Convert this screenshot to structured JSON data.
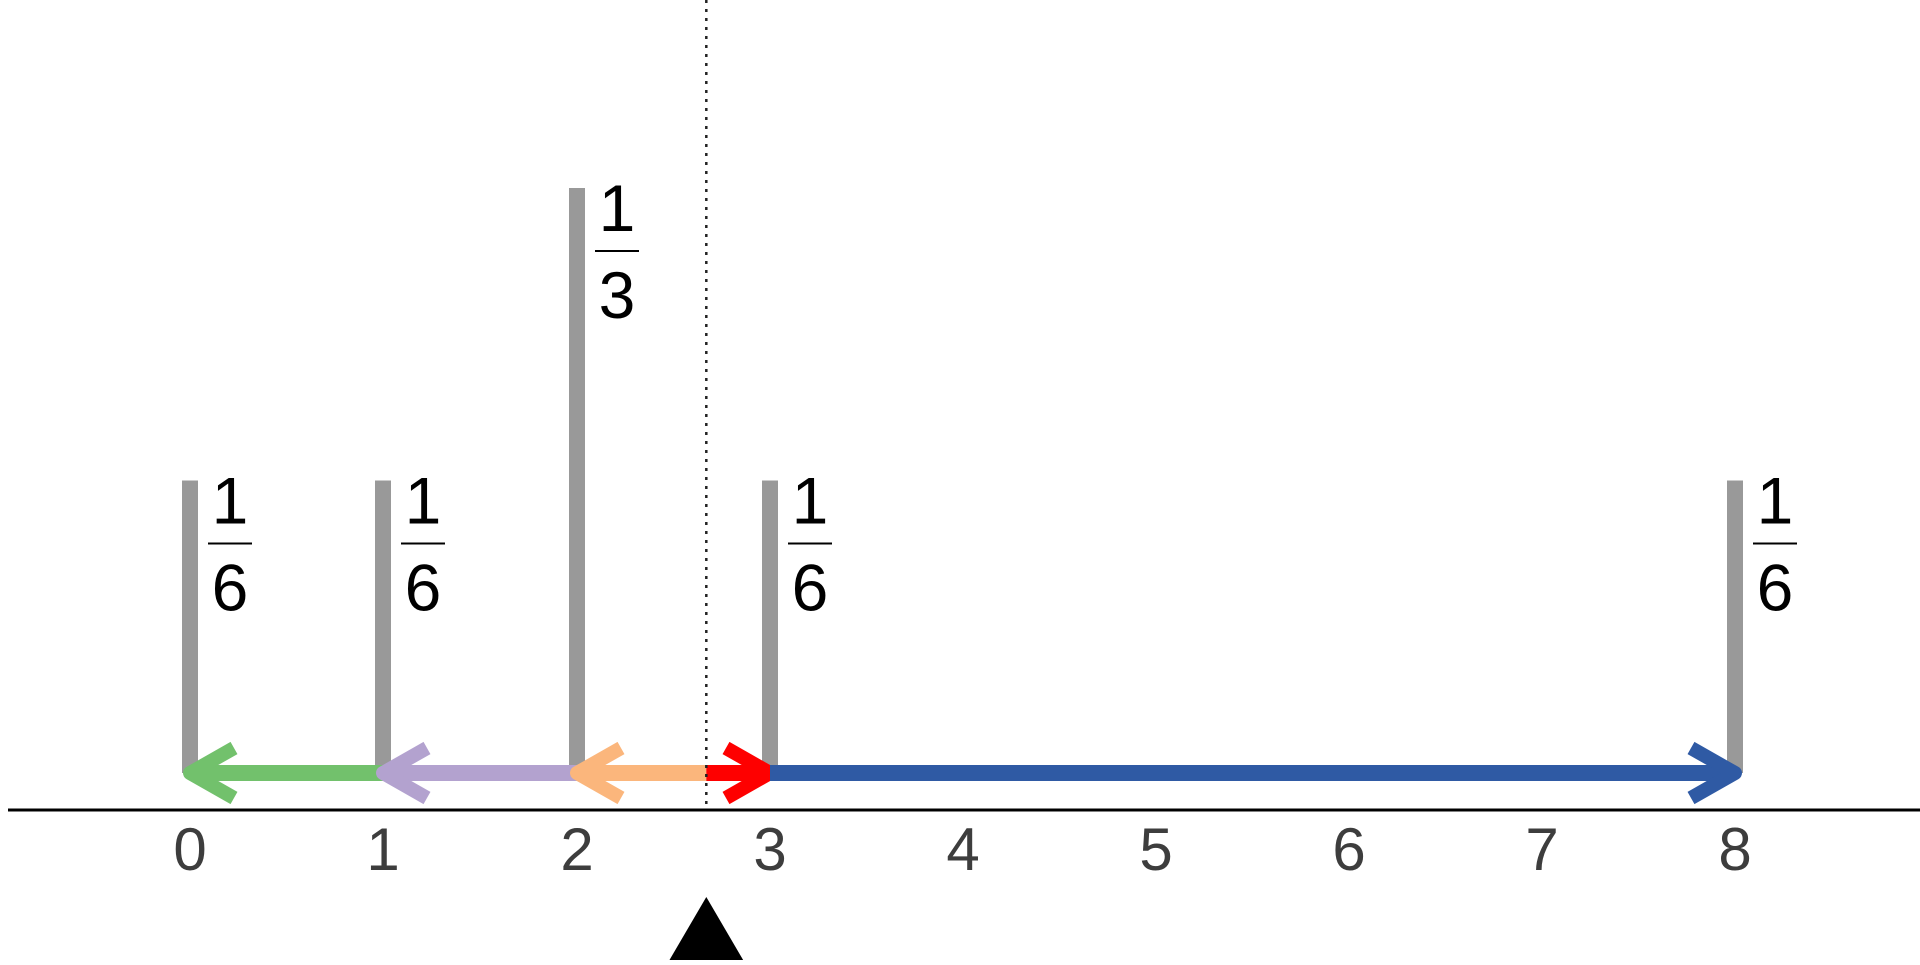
{
  "diagram": {
    "title": "",
    "axis": {
      "tick_labels": [
        "0",
        "1",
        "2",
        "3",
        "4",
        "5",
        "6",
        "7",
        "8"
      ]
    },
    "masses": [
      {
        "position": 0,
        "weight": "1/6",
        "numerator": "1",
        "denominator": "6"
      },
      {
        "position": 1,
        "weight": "1/6",
        "numerator": "1",
        "denominator": "6"
      },
      {
        "position": 2,
        "weight": "1/3",
        "numerator": "1",
        "denominator": "3"
      },
      {
        "position": 3,
        "weight": "1/6",
        "numerator": "1",
        "denominator": "6"
      },
      {
        "position": 8,
        "weight": "1/6",
        "numerator": "1",
        "denominator": "6"
      }
    ],
    "balance_point": 2.67,
    "arrows": [
      {
        "name": "arrow-green",
        "from": 1,
        "to": 0,
        "color": "#72c16c"
      },
      {
        "name": "arrow-purple",
        "from": 2,
        "to": 1,
        "color": "#b3a2cf"
      },
      {
        "name": "arrow-orange",
        "from": 2.67,
        "to": 2,
        "color": "#fbb67c"
      },
      {
        "name": "arrow-red",
        "from": 2.67,
        "to": 3,
        "color": "#fe0000"
      },
      {
        "name": "arrow-blue",
        "from": 3,
        "to": 8,
        "color": "#2f5aa4"
      }
    ],
    "colors": {
      "stem": "#999999",
      "axis": "#000000",
      "fulcrum": "#000000",
      "tick_text": "#3d3d3d"
    }
  }
}
